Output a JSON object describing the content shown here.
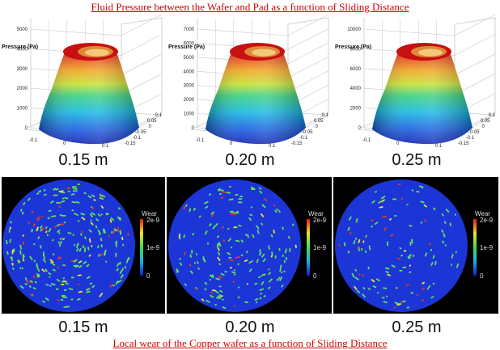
{
  "titles": {
    "top": "Fluid Pressure between the Wafer and Pad as a function of Sliding Distance",
    "bottom": "Local wear of the Copper wafer as a function of Sliding Distance"
  },
  "pressure_plots": [
    {
      "zlabel": "Pressure (Pa)",
      "z_ticks": [
        "0",
        "1000",
        "2000",
        "3000",
        "4000",
        "5000"
      ],
      "x_ticks": [
        "-0.1",
        "0",
        "0.1"
      ],
      "y_ticks": [
        "-0.15",
        "-0.1",
        "-0.05",
        "0",
        "0.05",
        "0.1"
      ],
      "distance_label": "0.15 m"
    },
    {
      "zlabel": "Pressure (Pa)",
      "z_ticks": [
        "0",
        "1000",
        "2000",
        "3000",
        "4000",
        "5000",
        "6000",
        "7000"
      ],
      "x_ticks": [
        "-0.1",
        "0",
        "0.1"
      ],
      "y_ticks": [
        "-0.15",
        "-0.1",
        "-0.05",
        "0",
        "0.05",
        "0.1"
      ],
      "distance_label": "0.20 m"
    },
    {
      "zlabel": "Pressure (Pa)",
      "z_ticks": [
        "0",
        "2000",
        "4000",
        "6000",
        "8000",
        "10000"
      ],
      "x_ticks": [
        "-0.1",
        "0",
        "0.1"
      ],
      "y_ticks": [
        "-0.15",
        "-0.1",
        "-0.05",
        "0",
        "0.05",
        "0.1"
      ],
      "distance_label": "0.25 m"
    }
  ],
  "wear_maps": [
    {
      "colorbar_title": "Wear",
      "colorbar_ticks": [
        "2e-9",
        "1e-9",
        "0"
      ],
      "distance_label": "0.15 m",
      "spot_density": 1.0
    },
    {
      "colorbar_title": "Wear",
      "colorbar_ticks": [
        "2e-9",
        "1e-9",
        "0"
      ],
      "distance_label": "0.20 m",
      "spot_density": 0.7
    },
    {
      "colorbar_title": "Wear",
      "colorbar_ticks": [
        "2e-9",
        "1e-9",
        "0"
      ],
      "distance_label": "0.25 m",
      "spot_density": 0.45
    }
  ],
  "colors": {
    "title": "#d40000",
    "wear_background": "#1c35d6",
    "spot_green": "#5fe05a",
    "spot_red": "#e03a2a",
    "spot_yellow": "#f0e040"
  }
}
